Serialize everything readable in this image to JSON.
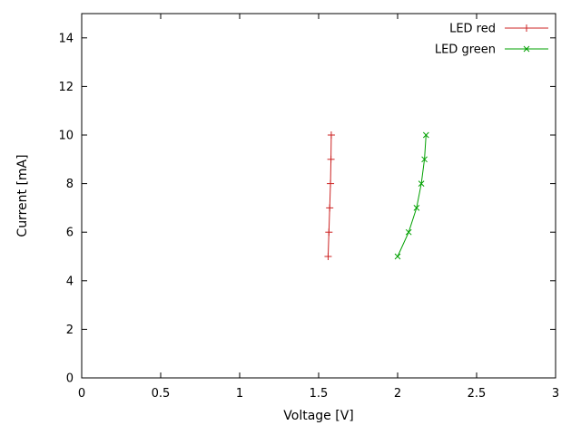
{
  "chart_data": {
    "type": "line",
    "title": "",
    "xlabel": "Voltage [V]",
    "ylabel": "Current [mA]",
    "xlim": [
      0,
      3
    ],
    "ylim": [
      0,
      15
    ],
    "xticks": [
      0,
      0.5,
      1,
      1.5,
      2,
      2.5,
      3
    ],
    "xtick_labels": [
      "0",
      "0.5",
      "1",
      "1.5",
      "2",
      "2.5",
      "3"
    ],
    "yticks": [
      0,
      2,
      4,
      6,
      8,
      10,
      12,
      14
    ],
    "ytick_labels": [
      "0",
      "2",
      "4",
      "6",
      "8",
      "10",
      "12",
      "14"
    ],
    "grid": false,
    "legend_position": "top-right",
    "axis_color": "#000000",
    "series": [
      {
        "name": "LED red",
        "color": "#cc2222",
        "marker": "plus",
        "points": [
          [
            1.56,
            5
          ],
          [
            1.565,
            6
          ],
          [
            1.57,
            7
          ],
          [
            1.575,
            8
          ],
          [
            1.578,
            9
          ],
          [
            1.58,
            10
          ]
        ]
      },
      {
        "name": "LED green",
        "color": "#00a000",
        "marker": "cross",
        "points": [
          [
            2.0,
            5
          ],
          [
            2.07,
            6
          ],
          [
            2.12,
            7
          ],
          [
            2.15,
            8
          ],
          [
            2.17,
            9
          ],
          [
            2.18,
            10
          ]
        ]
      }
    ]
  }
}
